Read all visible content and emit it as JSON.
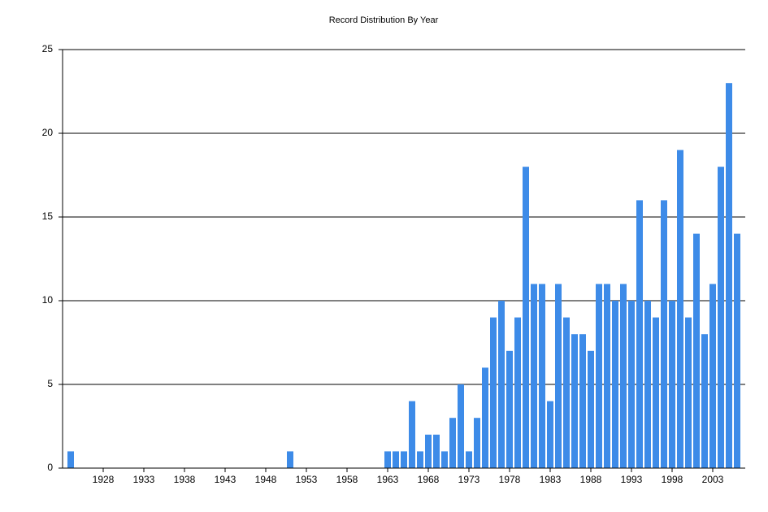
{
  "chart_data": {
    "type": "bar",
    "title": "Record Distribution By Year",
    "x": [
      1924,
      1951,
      1963,
      1964,
      1965,
      1966,
      1967,
      1968,
      1969,
      1970,
      1971,
      1972,
      1973,
      1974,
      1975,
      1976,
      1977,
      1978,
      1979,
      1980,
      1981,
      1982,
      1983,
      1984,
      1985,
      1986,
      1987,
      1988,
      1989,
      1990,
      1991,
      1992,
      1993,
      1994,
      1995,
      1996,
      1997,
      1998,
      1999,
      2000,
      2001,
      2002,
      2003,
      2004,
      2005,
      2006
    ],
    "values": [
      1,
      1,
      1,
      1,
      1,
      4,
      1,
      2,
      2,
      1,
      3,
      5,
      1,
      3,
      6,
      9,
      10,
      7,
      9,
      18,
      11,
      11,
      4,
      11,
      9,
      8,
      8,
      7,
      11,
      11,
      10,
      11,
      10,
      16,
      10,
      9,
      16,
      10,
      19,
      9,
      14,
      8,
      11,
      18,
      23,
      14
    ],
    "color": "#3d8be8",
    "xlim": [
      1923,
      2007
    ],
    "xticks": [
      1928,
      1933,
      1938,
      1943,
      1948,
      1953,
      1958,
      1963,
      1968,
      1973,
      1978,
      1983,
      1988,
      1993,
      1998,
      2003
    ],
    "ylim": [
      0,
      25
    ],
    "yticks": [
      0,
      5,
      10,
      15,
      20,
      25
    ],
    "grid": true
  }
}
